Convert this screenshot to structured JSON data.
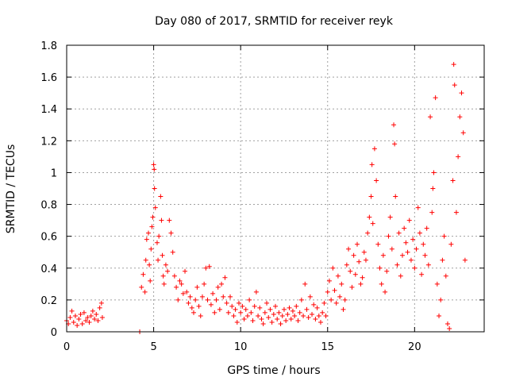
{
  "chart_data": {
    "type": "scatter",
    "title": "Day 080 of 2017, SRMTID for receiver reyk",
    "xlabel": "GPS time / hours",
    "ylabel": "SRMTID / TECUs",
    "xlim": [
      0,
      24
    ],
    "ylim": [
      0,
      1.8
    ],
    "xticks": [
      0,
      5,
      10,
      15,
      20
    ],
    "xtick_labels": [
      "0",
      "5",
      "10",
      "15",
      "20"
    ],
    "yticks": [
      0,
      0.2,
      0.4,
      0.6,
      0.8,
      1.0,
      1.2,
      1.4,
      1.6,
      1.8
    ],
    "ytick_labels": [
      "0",
      "0.2",
      "0.4",
      "0.6",
      "0.8",
      "1",
      "1.2",
      "1.4",
      "1.6",
      "1.8"
    ],
    "grid": true,
    "marker": "+",
    "series": [
      {
        "name": "SRMTID",
        "color": "#ff0000",
        "points": [
          [
            0.0,
            0.07
          ],
          [
            0.1,
            0.05
          ],
          [
            0.2,
            0.09
          ],
          [
            0.3,
            0.13
          ],
          [
            0.4,
            0.06
          ],
          [
            0.5,
            0.1
          ],
          [
            0.6,
            0.04
          ],
          [
            0.7,
            0.08
          ],
          [
            0.8,
            0.11
          ],
          [
            0.9,
            0.05
          ],
          [
            1.0,
            0.12
          ],
          [
            1.1,
            0.07
          ],
          [
            1.2,
            0.09
          ],
          [
            1.3,
            0.06
          ],
          [
            1.4,
            0.1
          ],
          [
            1.5,
            0.13
          ],
          [
            1.6,
            0.08
          ],
          [
            1.7,
            0.11
          ],
          [
            1.8,
            0.07
          ],
          [
            1.9,
            0.15
          ],
          [
            2.0,
            0.18
          ],
          [
            2.05,
            0.09
          ],
          [
            4.2,
            0.0
          ],
          [
            4.3,
            0.28
          ],
          [
            4.4,
            0.36
          ],
          [
            4.5,
            0.25
          ],
          [
            4.55,
            0.45
          ],
          [
            4.6,
            0.58
          ],
          [
            4.7,
            0.62
          ],
          [
            4.75,
            0.42
          ],
          [
            4.8,
            0.32
          ],
          [
            4.85,
            0.52
          ],
          [
            4.9,
            0.66
          ],
          [
            4.95,
            0.72
          ],
          [
            5.0,
            1.05
          ],
          [
            5.03,
            1.02
          ],
          [
            5.05,
            0.9
          ],
          [
            5.1,
            0.78
          ],
          [
            5.2,
            0.56
          ],
          [
            5.25,
            0.45
          ],
          [
            5.3,
            0.6
          ],
          [
            5.4,
            0.85
          ],
          [
            5.45,
            0.7
          ],
          [
            5.5,
            0.48
          ],
          [
            5.55,
            0.35
          ],
          [
            5.6,
            0.3
          ],
          [
            5.7,
            0.42
          ],
          [
            5.8,
            0.38
          ],
          [
            5.9,
            0.7
          ],
          [
            6.0,
            0.62
          ],
          [
            6.1,
            0.5
          ],
          [
            6.2,
            0.35
          ],
          [
            6.3,
            0.28
          ],
          [
            6.4,
            0.2
          ],
          [
            6.5,
            0.32
          ],
          [
            6.6,
            0.3
          ],
          [
            6.7,
            0.24
          ],
          [
            6.8,
            0.38
          ],
          [
            6.9,
            0.25
          ],
          [
            7.0,
            0.18
          ],
          [
            7.1,
            0.22
          ],
          [
            7.2,
            0.15
          ],
          [
            7.3,
            0.12
          ],
          [
            7.4,
            0.2
          ],
          [
            7.5,
            0.28
          ],
          [
            7.6,
            0.16
          ],
          [
            7.7,
            0.1
          ],
          [
            7.8,
            0.22
          ],
          [
            7.9,
            0.3
          ],
          [
            8.0,
            0.4
          ],
          [
            8.1,
            0.2
          ],
          [
            8.2,
            0.41
          ],
          [
            8.3,
            0.17
          ],
          [
            8.4,
            0.24
          ],
          [
            8.5,
            0.12
          ],
          [
            8.6,
            0.2
          ],
          [
            8.7,
            0.28
          ],
          [
            8.8,
            0.14
          ],
          [
            8.9,
            0.3
          ],
          [
            9.0,
            0.22
          ],
          [
            9.1,
            0.34
          ],
          [
            9.2,
            0.18
          ],
          [
            9.3,
            0.12
          ],
          [
            9.4,
            0.22
          ],
          [
            9.5,
            0.16
          ],
          [
            9.6,
            0.1
          ],
          [
            9.7,
            0.14
          ],
          [
            9.8,
            0.06
          ],
          [
            9.9,
            0.18
          ],
          [
            10.0,
            0.12
          ],
          [
            10.1,
            0.16
          ],
          [
            10.2,
            0.08
          ],
          [
            10.3,
            0.14
          ],
          [
            10.4,
            0.1
          ],
          [
            10.5,
            0.2
          ],
          [
            10.6,
            0.12
          ],
          [
            10.7,
            0.07
          ],
          [
            10.8,
            0.16
          ],
          [
            10.9,
            0.25
          ],
          [
            11.0,
            0.1
          ],
          [
            11.1,
            0.15
          ],
          [
            11.2,
            0.08
          ],
          [
            11.3,
            0.05
          ],
          [
            11.4,
            0.12
          ],
          [
            11.5,
            0.18
          ],
          [
            11.6,
            0.09
          ],
          [
            11.7,
            0.14
          ],
          [
            11.8,
            0.06
          ],
          [
            11.9,
            0.11
          ],
          [
            12.0,
            0.16
          ],
          [
            12.1,
            0.08
          ],
          [
            12.2,
            0.12
          ],
          [
            12.3,
            0.05
          ],
          [
            12.4,
            0.1
          ],
          [
            12.5,
            0.14
          ],
          [
            12.6,
            0.07
          ],
          [
            12.7,
            0.11
          ],
          [
            12.8,
            0.15
          ],
          [
            12.9,
            0.08
          ],
          [
            13.0,
            0.13
          ],
          [
            13.1,
            0.1
          ],
          [
            13.2,
            0.16
          ],
          [
            13.3,
            0.07
          ],
          [
            13.4,
            0.12
          ],
          [
            13.5,
            0.2
          ],
          [
            13.6,
            0.1
          ],
          [
            13.7,
            0.3
          ],
          [
            13.8,
            0.14
          ],
          [
            13.9,
            0.09
          ],
          [
            14.0,
            0.22
          ],
          [
            14.1,
            0.11
          ],
          [
            14.2,
            0.17
          ],
          [
            14.3,
            0.08
          ],
          [
            14.4,
            0.15
          ],
          [
            14.5,
            0.1
          ],
          [
            14.6,
            0.06
          ],
          [
            14.7,
            0.12
          ],
          [
            14.8,
            0.18
          ],
          [
            14.9,
            0.1
          ],
          [
            15.0,
            0.25
          ],
          [
            15.1,
            0.32
          ],
          [
            15.2,
            0.2
          ],
          [
            15.3,
            0.4
          ],
          [
            15.4,
            0.26
          ],
          [
            15.5,
            0.18
          ],
          [
            15.6,
            0.35
          ],
          [
            15.7,
            0.22
          ],
          [
            15.8,
            0.3
          ],
          [
            15.9,
            0.14
          ],
          [
            16.0,
            0.2
          ],
          [
            16.1,
            0.42
          ],
          [
            16.2,
            0.52
          ],
          [
            16.3,
            0.38
          ],
          [
            16.4,
            0.28
          ],
          [
            16.5,
            0.48
          ],
          [
            16.6,
            0.36
          ],
          [
            16.7,
            0.55
          ],
          [
            16.8,
            0.44
          ],
          [
            16.9,
            0.3
          ],
          [
            17.0,
            0.34
          ],
          [
            17.1,
            0.5
          ],
          [
            17.2,
            0.45
          ],
          [
            17.3,
            0.62
          ],
          [
            17.4,
            0.72
          ],
          [
            17.5,
            0.85
          ],
          [
            17.55,
            1.05
          ],
          [
            17.6,
            0.68
          ],
          [
            17.7,
            1.15
          ],
          [
            17.8,
            0.95
          ],
          [
            17.9,
            0.55
          ],
          [
            18.0,
            0.4
          ],
          [
            18.1,
            0.3
          ],
          [
            18.2,
            0.48
          ],
          [
            18.3,
            0.25
          ],
          [
            18.4,
            0.38
          ],
          [
            18.5,
            0.6
          ],
          [
            18.6,
            0.72
          ],
          [
            18.7,
            0.52
          ],
          [
            18.8,
            1.3
          ],
          [
            18.85,
            1.18
          ],
          [
            18.9,
            0.85
          ],
          [
            19.0,
            0.42
          ],
          [
            19.1,
            0.62
          ],
          [
            19.2,
            0.35
          ],
          [
            19.3,
            0.48
          ],
          [
            19.4,
            0.65
          ],
          [
            19.5,
            0.56
          ],
          [
            19.6,
            0.5
          ],
          [
            19.7,
            0.7
          ],
          [
            19.8,
            0.45
          ],
          [
            19.9,
            0.58
          ],
          [
            20.0,
            0.4
          ],
          [
            20.1,
            0.52
          ],
          [
            20.2,
            0.78
          ],
          [
            20.3,
            0.62
          ],
          [
            20.4,
            0.36
          ],
          [
            20.5,
            0.55
          ],
          [
            20.6,
            0.48
          ],
          [
            20.7,
            0.65
          ],
          [
            20.8,
            0.42
          ],
          [
            20.9,
            1.35
          ],
          [
            21.0,
            0.75
          ],
          [
            21.05,
            0.9
          ],
          [
            21.1,
            1.0
          ],
          [
            21.2,
            1.47
          ],
          [
            21.3,
            0.3
          ],
          [
            21.4,
            0.1
          ],
          [
            21.5,
            0.2
          ],
          [
            21.6,
            0.45
          ],
          [
            21.7,
            0.6
          ],
          [
            21.8,
            0.35
          ],
          [
            21.9,
            0.05
          ],
          [
            22.0,
            0.02
          ],
          [
            22.1,
            0.55
          ],
          [
            22.2,
            0.95
          ],
          [
            22.25,
            1.68
          ],
          [
            22.3,
            1.55
          ],
          [
            22.4,
            0.75
          ],
          [
            22.5,
            1.1
          ],
          [
            22.6,
            1.35
          ],
          [
            22.7,
            1.5
          ],
          [
            22.8,
            1.25
          ],
          [
            22.9,
            0.45
          ]
        ]
      }
    ]
  }
}
